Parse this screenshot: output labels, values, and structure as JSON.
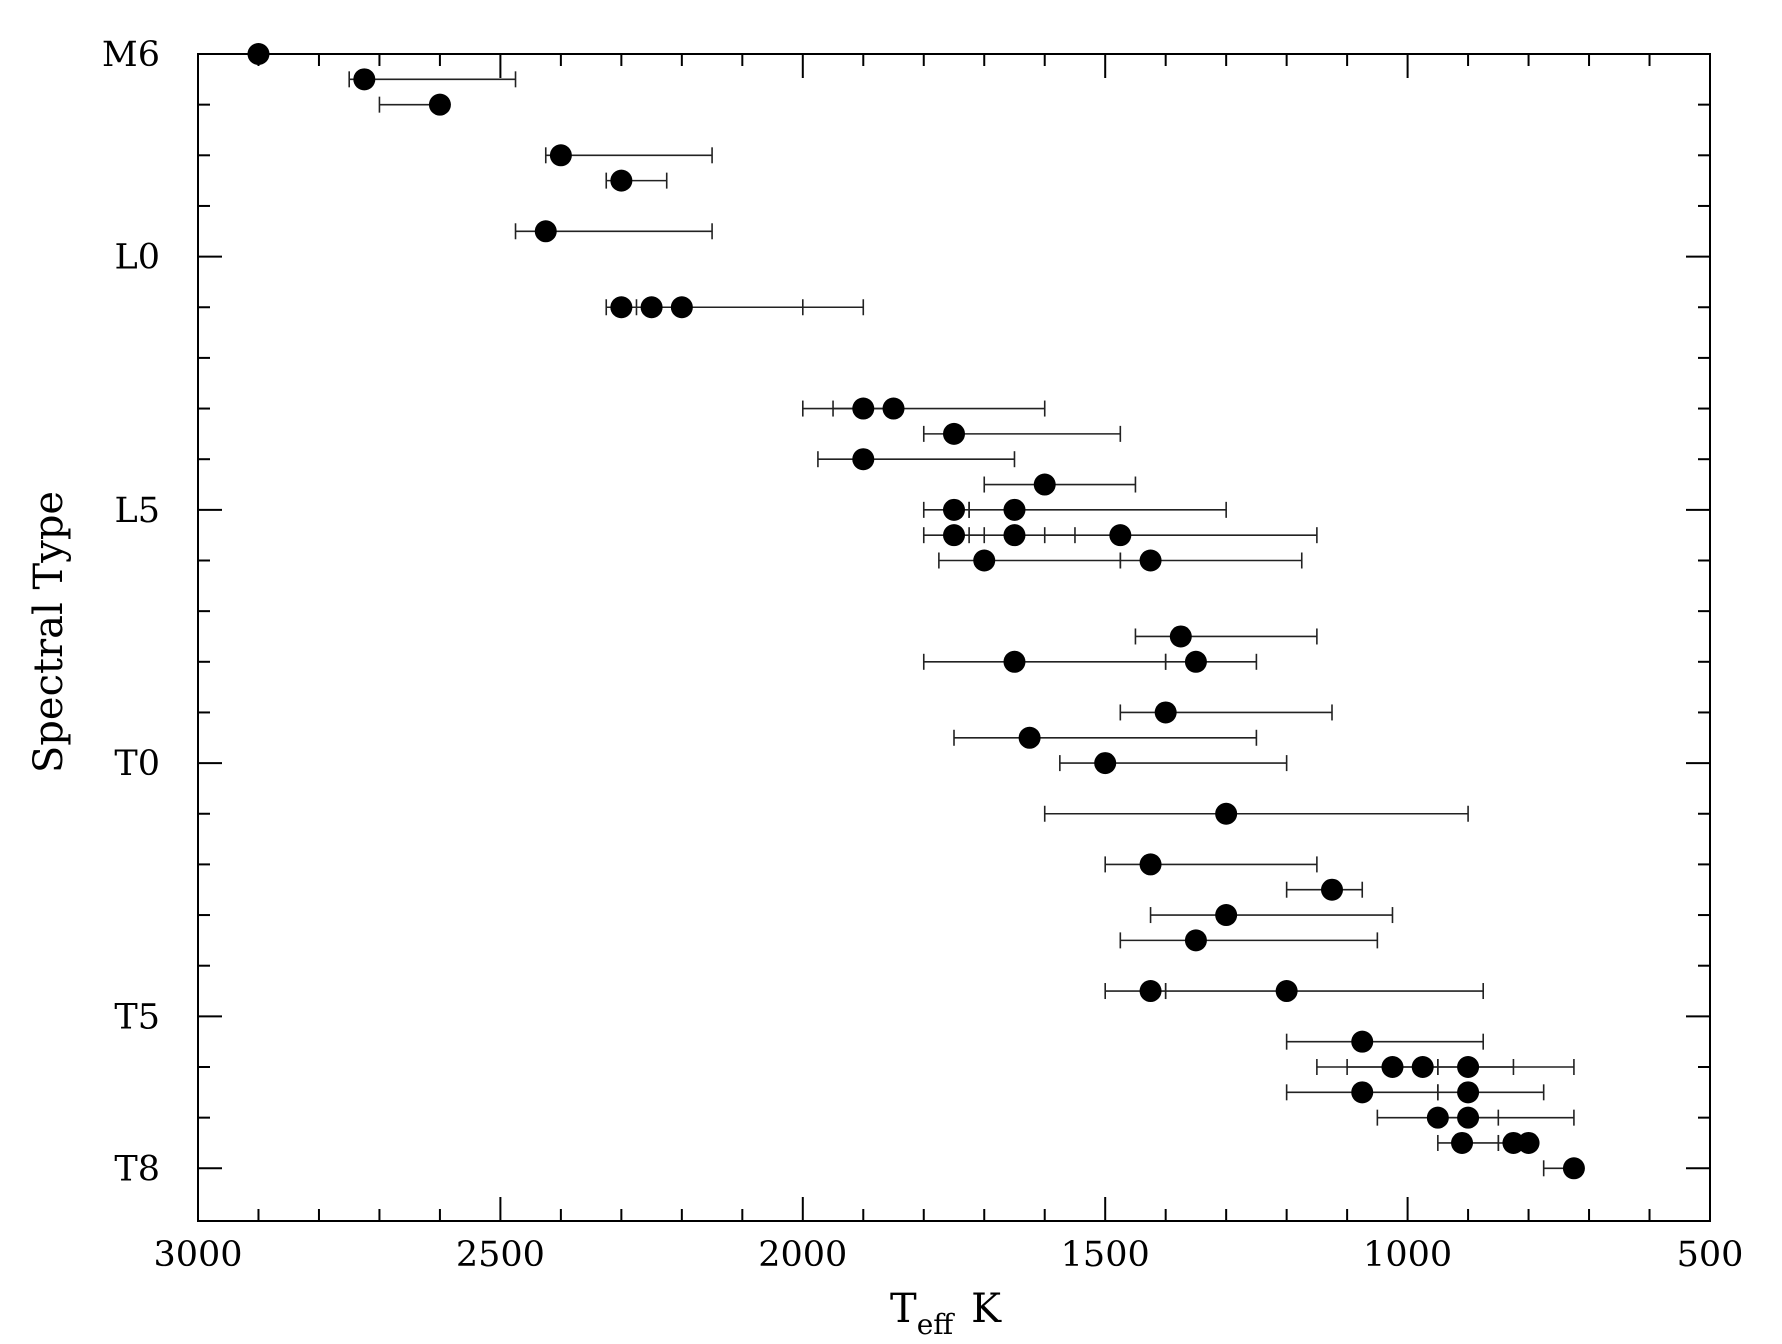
{
  "chart_data": {
    "type": "scatter",
    "xlabel": "T",
    "xlabel_sub": "eff",
    "xlabel_unit": "K",
    "ylabel": "Spectral Type",
    "xlim": [
      3000,
      500
    ],
    "ylim": [
      -6,
      16.4
    ],
    "x_ticks": [
      3000,
      2500,
      2000,
      1500,
      1000,
      500
    ],
    "x_tick_labels": [
      "3000",
      "2500",
      "2000",
      "1500",
      "1000",
      "500"
    ],
    "y_tick_labels": [
      {
        "label": "M6",
        "value": -4
      },
      {
        "label": "L0",
        "value": 0
      },
      {
        "label": "L5",
        "value": 5
      },
      {
        "label": "T0",
        "value": 10
      },
      {
        "label": "T5",
        "value": 15
      },
      {
        "label": "T8",
        "value": 18
      }
    ],
    "y_minor_ticks": [
      -4,
      -3,
      -2,
      -1,
      0,
      1,
      2,
      3,
      4,
      5,
      6,
      7,
      8,
      9,
      10,
      11,
      12,
      13,
      14,
      15,
      16,
      17,
      18
    ],
    "x_minor_step": 100,
    "series": [
      {
        "points": [
          {
            "sptype": "M6",
            "y": -4.0,
            "x": 2900,
            "xerr": null
          },
          {
            "sptype": "M6.5",
            "y": -3.5,
            "x": 2725,
            "xerr": [
              2750,
              2475
            ]
          },
          {
            "sptype": "M7",
            "y": -3.0,
            "x": 2600,
            "xerr": [
              2700,
              2600
            ]
          },
          {
            "sptype": "M8",
            "y": -2.0,
            "x": 2400,
            "xerr": [
              2425,
              2150
            ]
          },
          {
            "sptype": "M8.5",
            "y": -1.5,
            "x": 2300,
            "xerr": [
              2325,
              2225
            ]
          },
          {
            "sptype": "M9.5",
            "y": -0.5,
            "x": 2425,
            "xerr": [
              2475,
              2150
            ]
          },
          {
            "sptype": "L1",
            "y": 1.0,
            "x": 2300,
            "xerr": [
              2325,
              2275
            ]
          },
          {
            "sptype": "L1",
            "y": 1.0,
            "x": 2250,
            "xerr": [
              2300,
              2000
            ]
          },
          {
            "sptype": "L1",
            "y": 1.0,
            "x": 2200,
            "xerr": [
              2250,
              1900
            ]
          },
          {
            "sptype": "L3",
            "y": 3.0,
            "x": 1900,
            "xerr": [
              2000,
              1850
            ]
          },
          {
            "sptype": "L3",
            "y": 3.0,
            "x": 1850,
            "xerr": [
              1950,
              1600
            ]
          },
          {
            "sptype": "L3.5",
            "y": 3.5,
            "x": 1750,
            "xerr": [
              1800,
              1475
            ]
          },
          {
            "sptype": "L4",
            "y": 4.0,
            "x": 1900,
            "xerr": [
              1975,
              1650
            ]
          },
          {
            "sptype": "L4.5",
            "y": 4.5,
            "x": 1600,
            "xerr": [
              1700,
              1450
            ]
          },
          {
            "sptype": "L5",
            "y": 5.0,
            "x": 1750,
            "xerr": [
              1800,
              1725
            ]
          },
          {
            "sptype": "L5",
            "y": 5.0,
            "x": 1650,
            "xerr": [
              1725,
              1300
            ]
          },
          {
            "sptype": "L5.5",
            "y": 5.5,
            "x": 1750,
            "xerr": [
              1800,
              1700
            ]
          },
          {
            "sptype": "L5.5",
            "y": 5.5,
            "x": 1650,
            "xerr": [
              1725,
              1550
            ]
          },
          {
            "sptype": "L5.5",
            "y": 5.5,
            "x": 1475,
            "xerr": [
              1600,
              1150
            ]
          },
          {
            "sptype": "L6",
            "y": 6.0,
            "x": 1700,
            "xerr": [
              1775,
              1475
            ]
          },
          {
            "sptype": "L6",
            "y": 6.0,
            "x": 1425,
            "xerr": [
              1475,
              1175
            ]
          },
          {
            "sptype": "L7.5",
            "y": 7.5,
            "x": 1375,
            "xerr": [
              1450,
              1150
            ]
          },
          {
            "sptype": "L8",
            "y": 8.0,
            "x": 1650,
            "xerr": [
              1800,
              1400
            ]
          },
          {
            "sptype": "L8",
            "y": 8.0,
            "x": 1350,
            "xerr": [
              1400,
              1250
            ]
          },
          {
            "sptype": "L9",
            "y": 9.0,
            "x": 1400,
            "xerr": [
              1475,
              1125
            ]
          },
          {
            "sptype": "L9.5",
            "y": 9.5,
            "x": 1625,
            "xerr": [
              1750,
              1250
            ]
          },
          {
            "sptype": "T0",
            "y": 10.0,
            "x": 1500,
            "xerr": [
              1575,
              1200
            ]
          },
          {
            "sptype": "T1",
            "y": 11.0,
            "x": 1300,
            "xerr": [
              1600,
              900
            ]
          },
          {
            "sptype": "T2",
            "y": 12.0,
            "x": 1425,
            "xerr": [
              1500,
              1150
            ]
          },
          {
            "sptype": "T2.5",
            "y": 12.5,
            "x": 1125,
            "xerr": [
              1200,
              1075
            ]
          },
          {
            "sptype": "T3",
            "y": 13.0,
            "x": 1300,
            "xerr": [
              1425,
              1025
            ]
          },
          {
            "sptype": "T3.5",
            "y": 13.5,
            "x": 1350,
            "xerr": [
              1475,
              1050
            ]
          },
          {
            "sptype": "T4.5",
            "y": 14.5,
            "x": 1425,
            "xerr": [
              1500,
              1400
            ]
          },
          {
            "sptype": "T4.5",
            "y": 14.5,
            "x": 1200,
            "xerr": [
              1400,
              875
            ]
          },
          {
            "sptype": "T5.5",
            "y": 15.5,
            "x": 1075,
            "xerr": [
              1200,
              875
            ]
          },
          {
            "sptype": "T6",
            "y": 16.0,
            "x": 1025,
            "xerr": [
              1150,
              950
            ]
          },
          {
            "sptype": "T6",
            "y": 16.0,
            "x": 975,
            "xerr": [
              1100,
              825
            ]
          },
          {
            "sptype": "T6",
            "y": 16.0,
            "x": 900,
            "xerr": [
              950,
              725
            ]
          },
          {
            "sptype": "T6.5",
            "y": 16.5,
            "x": 1075,
            "xerr": [
              1200,
              950
            ]
          },
          {
            "sptype": "T6.5",
            "y": 16.5,
            "x": 900,
            "xerr": [
              950,
              775
            ]
          },
          {
            "sptype": "T7",
            "y": 17.0,
            "x": 950,
            "xerr": [
              1050,
              850
            ]
          },
          {
            "sptype": "T7",
            "y": 17.0,
            "x": 900,
            "xerr": [
              950,
              725
            ]
          },
          {
            "sptype": "T7.5",
            "y": 17.5,
            "x": 910,
            "xerr": [
              950,
              850
            ]
          },
          {
            "sptype": "T7.5",
            "y": 17.5,
            "x": 825,
            "xerr": [
              850,
              825
            ]
          },
          {
            "sptype": "T7.5",
            "y": 17.5,
            "x": 800,
            "xerr": [
              825,
              800
            ]
          },
          {
            "sptype": "T8",
            "y": 18.0,
            "x": 725,
            "xerr": [
              775,
              725
            ]
          }
        ]
      }
    ]
  }
}
